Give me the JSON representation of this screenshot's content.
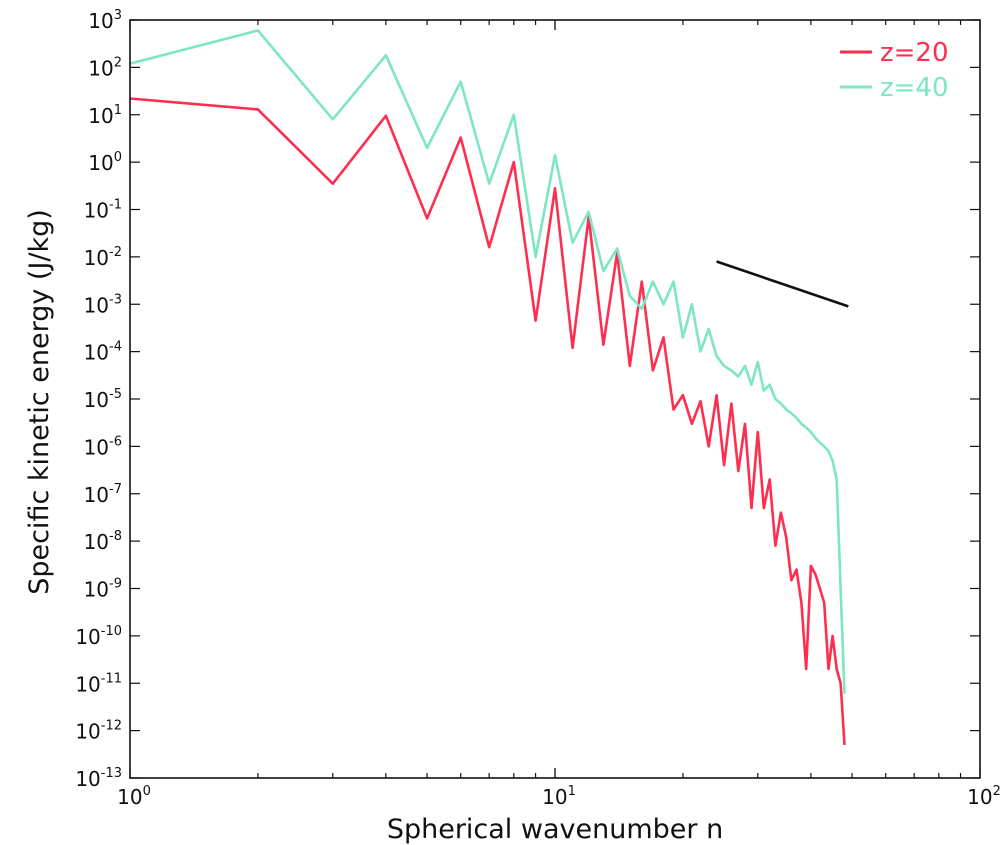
{
  "chart_data": {
    "type": "line",
    "title": "",
    "xlabel": "Spherical wavenumber n",
    "ylabel": "Specific kinetic energy (J/kg)",
    "x_scale": "log",
    "y_scale": "log",
    "xlim": [
      1,
      100
    ],
    "ylim": [
      1e-13,
      1000
    ],
    "x_tick_labels": [
      {
        "base": "10",
        "exp": "0",
        "value": 1
      },
      {
        "base": "10",
        "exp": "1",
        "value": 10
      },
      {
        "base": "10",
        "exp": "2",
        "value": 100
      }
    ],
    "y_tick_labels": [
      {
        "base": "10",
        "exp": "3",
        "value": 1000
      },
      {
        "base": "10",
        "exp": "2",
        "value": 100
      },
      {
        "base": "10",
        "exp": "1",
        "value": 10
      },
      {
        "base": "10",
        "exp": "0",
        "value": 1
      },
      {
        "base": "10",
        "exp": "-1",
        "value": 0.1
      },
      {
        "base": "10",
        "exp": "-2",
        "value": 0.01
      },
      {
        "base": "10",
        "exp": "-3",
        "value": 0.001
      },
      {
        "base": "10",
        "exp": "-4",
        "value": 0.0001
      },
      {
        "base": "10",
        "exp": "-5",
        "value": 1e-05
      },
      {
        "base": "10",
        "exp": "-6",
        "value": 1e-06
      },
      {
        "base": "10",
        "exp": "-7",
        "value": 1e-07
      },
      {
        "base": "10",
        "exp": "-8",
        "value": 1e-08
      },
      {
        "base": "10",
        "exp": "-9",
        "value": 1e-09
      },
      {
        "base": "10",
        "exp": "-10",
        "value": 1e-10
      },
      {
        "base": "10",
        "exp": "-11",
        "value": 1e-11
      },
      {
        "base": "10",
        "exp": "-12",
        "value": 1e-12
      },
      {
        "base": "10",
        "exp": "-13",
        "value": 1e-13
      }
    ],
    "grid": false,
    "legend_position": "top-right",
    "series": [
      {
        "name": "z=20",
        "color": "#ff2e4f",
        "x": [
          1,
          2,
          3,
          4,
          5,
          6,
          7,
          8,
          9,
          10,
          11,
          12,
          13,
          14,
          15,
          16,
          17,
          18,
          19,
          20,
          21,
          22,
          23,
          24,
          25,
          26,
          27,
          28,
          29,
          30,
          31,
          32,
          33,
          34,
          35,
          36,
          37,
          38,
          39,
          40,
          41,
          42,
          43,
          44,
          45,
          46,
          47,
          48
        ],
        "y": [
          22,
          13,
          0.35,
          9.5,
          0.065,
          3.3,
          0.016,
          1.0,
          0.00045,
          0.28,
          0.00012,
          0.07,
          0.00014,
          0.012,
          5e-05,
          0.003,
          4e-05,
          0.0002,
          6e-06,
          1.2e-05,
          3e-06,
          9e-06,
          1e-06,
          1.2e-05,
          4e-07,
          8e-06,
          3e-07,
          3e-06,
          5e-08,
          2e-06,
          5e-08,
          2e-07,
          8e-09,
          4e-08,
          1.2e-08,
          1.5e-09,
          2.5e-09,
          5e-10,
          2e-11,
          3e-09,
          2e-09,
          1e-09,
          5e-10,
          2e-11,
          1e-10,
          2e-11,
          1e-11,
          5e-13
        ]
      },
      {
        "name": "z=40",
        "color": "#7de6c3",
        "x": [
          1,
          2,
          3,
          4,
          5,
          6,
          7,
          8,
          9,
          10,
          11,
          12,
          13,
          14,
          15,
          16,
          17,
          18,
          19,
          20,
          21,
          22,
          23,
          24,
          25,
          26,
          27,
          28,
          29,
          30,
          31,
          32,
          33,
          34,
          35,
          36,
          37,
          38,
          39,
          40,
          41,
          42,
          43,
          44,
          45,
          46,
          47,
          48
        ],
        "y": [
          120,
          600,
          8,
          180,
          2,
          50,
          0.35,
          10,
          0.01,
          1.4,
          0.02,
          0.09,
          0.005,
          0.015,
          0.0015,
          0.0008,
          0.003,
          0.001,
          0.003,
          0.0002,
          0.001,
          0.0001,
          0.0003,
          8e-05,
          5e-05,
          4e-05,
          3e-05,
          5e-05,
          2e-05,
          6e-05,
          1.5e-05,
          2e-05,
          1e-05,
          8e-06,
          6e-06,
          5e-06,
          4e-06,
          3e-06,
          2.5e-06,
          2e-06,
          1.5e-06,
          1.2e-06,
          1e-06,
          8e-07,
          5e-07,
          2e-07,
          1e-09,
          6e-12
        ]
      }
    ],
    "reference_line": {
      "color": "#111111",
      "x": [
        24,
        49
      ],
      "y": [
        0.008,
        0.0009
      ]
    }
  }
}
